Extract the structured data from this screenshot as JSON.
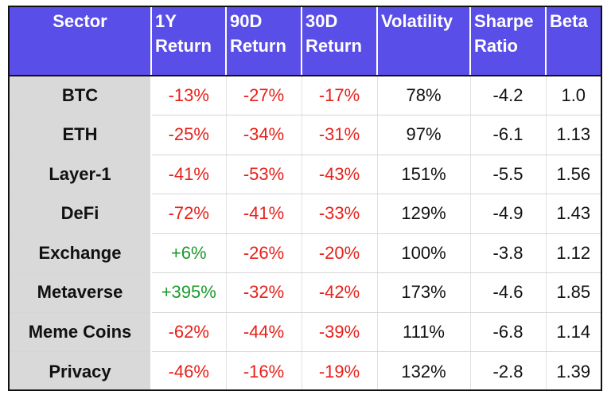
{
  "chart_data": {
    "type": "table",
    "columns": [
      "Sector",
      "1Y Return",
      "90D Return",
      "30D Return",
      "Volatility",
      "Sharpe Ratio",
      "Beta"
    ],
    "header_lines": [
      [
        "Sector",
        ""
      ],
      [
        "1Y",
        "Return"
      ],
      [
        "90D",
        "Return"
      ],
      [
        "30D",
        "Return"
      ],
      [
        "Volatility",
        ""
      ],
      [
        "Sharpe",
        "Ratio"
      ],
      [
        "Beta",
        ""
      ]
    ],
    "rows": [
      {
        "sector": "BTC",
        "y1": "-13%",
        "d90": "-27%",
        "d30": "-17%",
        "volatility": "78%",
        "sharpe": "-4.2",
        "beta": "1.0"
      },
      {
        "sector": "ETH",
        "y1": "-25%",
        "d90": "-34%",
        "d30": "-31%",
        "volatility": "97%",
        "sharpe": "-6.1",
        "beta": "1.13"
      },
      {
        "sector": "Layer-1",
        "y1": "-41%",
        "d90": "-53%",
        "d30": "-43%",
        "volatility": "151%",
        "sharpe": "-5.5",
        "beta": "1.56"
      },
      {
        "sector": "DeFi",
        "y1": "-72%",
        "d90": "-41%",
        "d30": "-33%",
        "volatility": "129%",
        "sharpe": "-4.9",
        "beta": "1.43"
      },
      {
        "sector": "Exchange",
        "y1": "+6%",
        "d90": "-26%",
        "d30": "-20%",
        "volatility": "100%",
        "sharpe": "-3.8",
        "beta": "1.12"
      },
      {
        "sector": "Metaverse",
        "y1": "+395%",
        "d90": "-32%",
        "d30": "-42%",
        "volatility": "173%",
        "sharpe": "-4.6",
        "beta": "1.85"
      },
      {
        "sector": "Meme Coins",
        "y1": "-62%",
        "d90": "-44%",
        "d30": "-39%",
        "volatility": "111%",
        "sharpe": "-6.8",
        "beta": "1.14"
      },
      {
        "sector": "Privacy",
        "y1": "-46%",
        "d90": "-16%",
        "d30": "-19%",
        "volatility": "132%",
        "sharpe": "-2.8",
        "beta": "1.39"
      }
    ]
  },
  "colors": {
    "header_bg": "#5a4ee8",
    "header_text": "#ffffff",
    "sector_bg": "#d9d9d9",
    "negative": "#e8201a",
    "positive": "#1c9a2c"
  }
}
